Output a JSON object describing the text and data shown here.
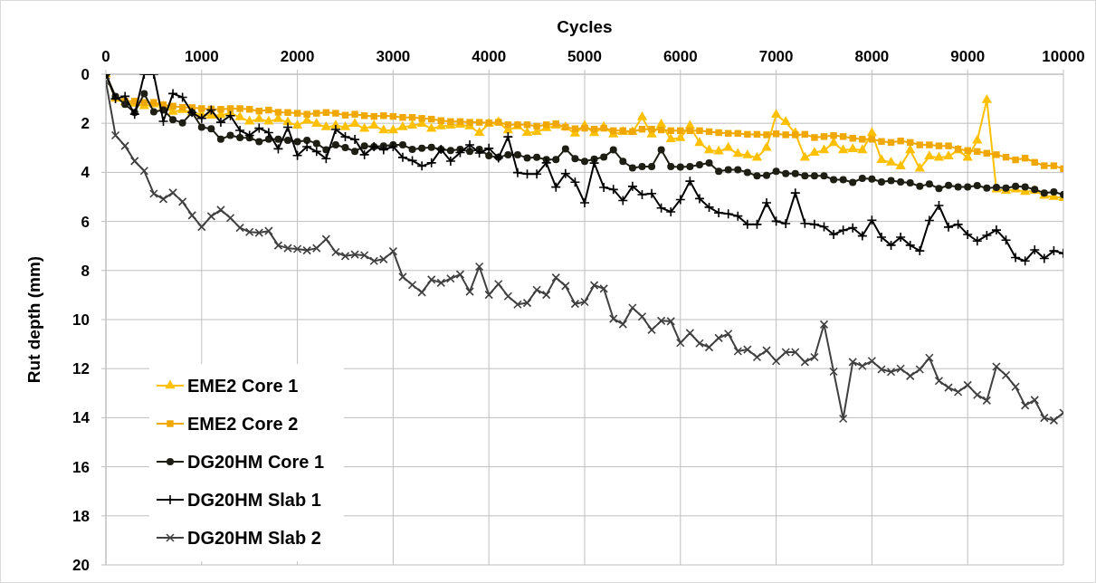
{
  "chart_data": {
    "type": "line",
    "xlabel": "Cycles",
    "ylabel": "Rut depth (mm)",
    "x": [
      0,
      100,
      200,
      300,
      400,
      500,
      600,
      700,
      800,
      900,
      1000,
      1100,
      1200,
      1300,
      1400,
      1500,
      1600,
      1700,
      1800,
      1900,
      2000,
      2100,
      2200,
      2300,
      2400,
      2500,
      2600,
      2700,
      2800,
      2900,
      3000,
      3100,
      3200,
      3300,
      3400,
      3500,
      3600,
      3700,
      3800,
      3900,
      4000,
      4100,
      4200,
      4300,
      4400,
      4500,
      4600,
      4700,
      4800,
      4900,
      5000,
      5100,
      5200,
      5300,
      5400,
      5500,
      5600,
      5700,
      5800,
      5900,
      6000,
      6100,
      6200,
      6300,
      6400,
      6500,
      6600,
      6700,
      6800,
      6900,
      7000,
      7100,
      7200,
      7300,
      7400,
      7500,
      7600,
      7700,
      7800,
      7900,
      8000,
      8100,
      8200,
      8300,
      8400,
      8500,
      8600,
      8700,
      8800,
      8900,
      9000,
      9100,
      9200,
      9300,
      9400,
      9500,
      9600,
      9700,
      9800,
      9900,
      10000
    ],
    "xlim": [
      0,
      10000
    ],
    "xticks": [
      0,
      1000,
      2000,
      3000,
      4000,
      5000,
      6000,
      7000,
      8000,
      9000,
      10000
    ],
    "ylim": [
      20,
      0
    ],
    "yticks": [
      0,
      2,
      4,
      6,
      8,
      10,
      12,
      14,
      16,
      18,
      20
    ],
    "grid": true,
    "legend": "bottom left",
    "series": [
      {
        "name": "EME2 Core 1",
        "color": "#ffc000",
        "marker": "triangle",
        "values": [
          0,
          1.0,
          1.14,
          1.2,
          1.3,
          1.23,
          1.3,
          1.53,
          1.46,
          1.56,
          1.64,
          1.69,
          1.67,
          1.59,
          1.75,
          1.93,
          1.83,
          1.93,
          1.83,
          1.96,
          2.09,
          1.89,
          2.02,
          2.16,
          2.09,
          2.16,
          2.02,
          2.22,
          2.09,
          2.29,
          2.29,
          2.16,
          2.09,
          2.02,
          2.22,
          2.12,
          2.09,
          2.06,
          2.12,
          2.39,
          2.02,
          1.96,
          2.29,
          2.12,
          2.39,
          2.35,
          2.2,
          2.09,
          2.16,
          2.42,
          2.1,
          2.4,
          2.15,
          2.45,
          2.35,
          2.35,
          1.75,
          2.45,
          2.05,
          2.65,
          2.6,
          2.1,
          2.8,
          3.1,
          3.15,
          3.0,
          3.25,
          3.3,
          3.4,
          3.0,
          1.65,
          1.95,
          2.4,
          3.4,
          3.2,
          3.1,
          2.8,
          3.1,
          3.05,
          3.1,
          2.4,
          3.5,
          3.6,
          3.75,
          3.1,
          3.85,
          3.35,
          3.4,
          3.35,
          3.1,
          3.4,
          2.7,
          1.05,
          4.7,
          4.75,
          4.7,
          4.8,
          4.75,
          4.95,
          5.0,
          5.05
        ]
      },
      {
        "name": "EME2 Core 2",
        "color": "#f0a800",
        "marker": "square",
        "values": [
          0,
          0.95,
          1.1,
          1.1,
          1.15,
          1.15,
          1.25,
          1.3,
          1.35,
          1.36,
          1.4,
          1.42,
          1.43,
          1.4,
          1.4,
          1.43,
          1.5,
          1.46,
          1.55,
          1.56,
          1.59,
          1.63,
          1.59,
          1.56,
          1.59,
          1.67,
          1.63,
          1.69,
          1.72,
          1.69,
          1.72,
          1.76,
          1.76,
          1.8,
          1.83,
          1.89,
          1.93,
          1.93,
          1.96,
          1.96,
          1.98,
          1.96,
          2.06,
          2.06,
          2.06,
          2.12,
          2.06,
          2.02,
          2.16,
          2.22,
          2.2,
          2.24,
          2.2,
          2.3,
          2.3,
          2.34,
          2.24,
          2.24,
          2.27,
          2.3,
          2.3,
          2.3,
          2.3,
          2.34,
          2.38,
          2.41,
          2.41,
          2.45,
          2.45,
          2.47,
          2.43,
          2.47,
          2.47,
          2.45,
          2.58,
          2.54,
          2.5,
          2.54,
          2.61,
          2.65,
          2.65,
          2.74,
          2.78,
          2.72,
          2.78,
          2.88,
          2.88,
          2.92,
          2.92,
          3.05,
          3.11,
          3.15,
          3.22,
          3.28,
          3.38,
          3.49,
          3.42,
          3.59,
          3.73,
          3.73,
          3.85
        ]
      },
      {
        "name": "DG20HM Core 1",
        "color": "#1e1e14",
        "marker": "circle",
        "values": [
          0,
          0.9,
          1.23,
          1.56,
          0.79,
          1.53,
          1.46,
          1.85,
          1.98,
          1.56,
          2.16,
          2.22,
          2.65,
          2.49,
          2.58,
          2.59,
          2.75,
          2.65,
          2.65,
          2.69,
          2.75,
          2.69,
          2.82,
          3.08,
          2.88,
          2.99,
          3.15,
          2.92,
          2.95,
          2.92,
          2.88,
          2.88,
          3.06,
          3.02,
          2.98,
          3.06,
          3.11,
          3.06,
          3.15,
          3.06,
          3.32,
          3.39,
          3.28,
          3.28,
          3.41,
          3.39,
          3.48,
          3.48,
          3.04,
          3.44,
          3.55,
          3.46,
          3.38,
          3.08,
          3.55,
          3.82,
          3.76,
          3.76,
          3.08,
          3.76,
          3.78,
          3.76,
          3.69,
          3.62,
          3.96,
          3.89,
          3.89,
          4.0,
          4.14,
          4.12,
          3.96,
          4.05,
          4.05,
          4.14,
          4.14,
          4.14,
          4.3,
          4.3,
          4.41,
          4.24,
          4.27,
          4.39,
          4.34,
          4.39,
          4.43,
          4.57,
          4.47,
          4.66,
          4.53,
          4.59,
          4.59,
          4.54,
          4.64,
          4.61,
          4.64,
          4.57,
          4.59,
          4.7,
          4.84,
          4.8,
          4.91
        ]
      },
      {
        "name": "DG20HM Slab 1",
        "color": "#000000",
        "marker": "cross",
        "values": [
          0,
          1.0,
          0.9,
          1.63,
          0,
          0,
          1.92,
          0.79,
          0.94,
          1.56,
          1.8,
          1.46,
          1.96,
          1.69,
          2.29,
          2.49,
          2.2,
          2.38,
          3.04,
          2.16,
          3.31,
          2.95,
          3.15,
          3.44,
          2.25,
          2.55,
          2.66,
          3.28,
          2.95,
          3.08,
          2.95,
          3.39,
          3.52,
          3.74,
          3.61,
          3.06,
          3.54,
          3.19,
          2.88,
          3.21,
          3.02,
          3.41,
          2.55,
          4.01,
          4.07,
          4.07,
          3.61,
          4.6,
          4.05,
          4.4,
          5.24,
          3.62,
          4.61,
          4.7,
          5.15,
          4.57,
          4.91,
          4.86,
          5.45,
          5.61,
          5.11,
          4.36,
          5.07,
          5.42,
          5.65,
          5.69,
          5.78,
          6.12,
          6.12,
          5.24,
          5.99,
          6.09,
          4.84,
          6.08,
          6.12,
          6.22,
          6.53,
          6.36,
          6.26,
          6.59,
          5.95,
          6.64,
          6.97,
          6.64,
          6.97,
          7.2,
          5.96,
          5.35,
          6.23,
          6.12,
          6.53,
          6.8,
          6.57,
          6.35,
          6.76,
          7.47,
          7.61,
          7.16,
          7.51,
          7.2,
          7.3
        ]
      },
      {
        "name": "DG20HM Slab 2",
        "color": "#404040",
        "marker": "x",
        "values": [
          0.3,
          2.49,
          2.92,
          3.54,
          3.94,
          4.87,
          5.09,
          4.83,
          5.2,
          5.75,
          6.22,
          5.79,
          5.53,
          5.86,
          6.26,
          6.43,
          6.46,
          6.39,
          6.98,
          7.09,
          7.12,
          7.18,
          7.09,
          6.72,
          7.25,
          7.41,
          7.35,
          7.38,
          7.61,
          7.54,
          7.22,
          8.26,
          8.59,
          8.89,
          8.37,
          8.5,
          8.33,
          8.16,
          8.86,
          7.84,
          8.99,
          8.55,
          9.05,
          9.38,
          9.32,
          8.79,
          8.99,
          8.29,
          8.63,
          9.36,
          9.28,
          8.6,
          8.74,
          9.97,
          10.19,
          9.52,
          9.88,
          10.42,
          10.05,
          10.07,
          10.95,
          10.55,
          10.97,
          11.13,
          10.75,
          10.58,
          11.29,
          11.22,
          11.53,
          11.26,
          11.69,
          11.33,
          11.33,
          11.73,
          11.53,
          10.2,
          12.12,
          14.04,
          11.73,
          11.89,
          11.69,
          12.03,
          12.13,
          12.0,
          12.3,
          12.03,
          11.56,
          12.5,
          12.77,
          12.95,
          12.67,
          13.07,
          13.3,
          11.92,
          12.27,
          12.74,
          13.5,
          13.28,
          14.01,
          14.11,
          13.8
        ]
      }
    ]
  }
}
